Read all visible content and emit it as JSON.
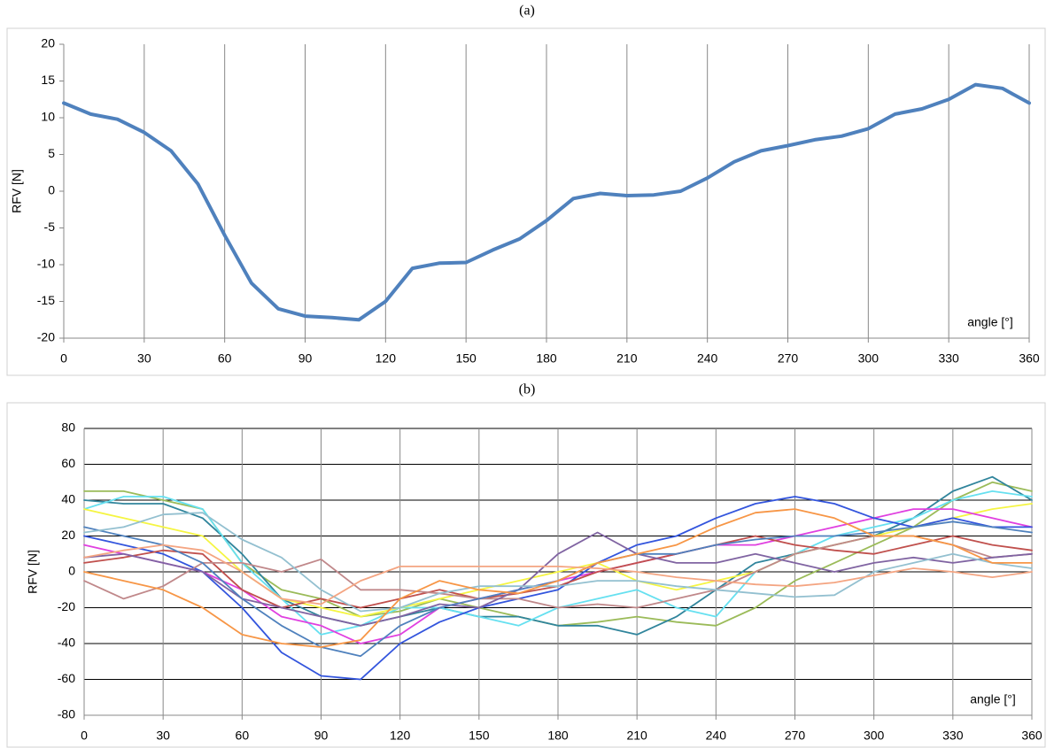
{
  "chart_data": [
    {
      "type": "line",
      "title": "(a)",
      "ylabel": "RFV [N]",
      "xlabel": "angle [°]",
      "x": [
        0,
        10,
        20,
        30,
        40,
        50,
        60,
        70,
        80,
        90,
        100,
        110,
        120,
        130,
        140,
        150,
        160,
        170,
        180,
        190,
        200,
        210,
        220,
        230,
        240,
        250,
        260,
        270,
        280,
        290,
        300,
        310,
        320,
        330,
        340,
        350,
        360
      ],
      "series": [
        {
          "color": "#4f81bd",
          "values": [
            12,
            10.5,
            9.8,
            8,
            5.5,
            1,
            -6,
            -12.5,
            -16,
            -17,
            -17.2,
            -17.5,
            -15,
            -10.5,
            -9.8,
            -9.7,
            -8,
            -6.5,
            -4,
            -1,
            -0.3,
            -0.6,
            -0.5,
            0,
            1.8,
            4,
            5.5,
            6.2,
            7,
            7.5,
            8.5,
            10.5,
            11.2,
            12.5,
            14.5,
            14,
            12
          ]
        }
      ],
      "xlim": [
        0,
        360
      ],
      "xticks": [
        0,
        30,
        60,
        90,
        120,
        150,
        180,
        210,
        240,
        270,
        300,
        330,
        360
      ],
      "ylim": [
        -20,
        20
      ],
      "yticks": [
        -20,
        -15,
        -10,
        -5,
        0,
        5,
        10,
        15,
        20
      ],
      "xgrid": true,
      "ygrid": false
    },
    {
      "type": "line",
      "title": "(b)",
      "ylabel": "RFV [N]",
      "xlabel": "angle [°]",
      "x": [
        0,
        15,
        30,
        45,
        60,
        75,
        90,
        105,
        120,
        135,
        150,
        165,
        180,
        195,
        210,
        225,
        240,
        255,
        270,
        285,
        300,
        315,
        330,
        345,
        360
      ],
      "series": [
        {
          "color": "#9bbb59",
          "values": [
            45,
            45,
            40,
            35,
            5,
            -10,
            -15,
            -25,
            -22,
            -15,
            -20,
            -25,
            -30,
            -28,
            -25,
            -28,
            -30,
            -20,
            -5,
            5,
            15,
            25,
            40,
            50,
            45
          ]
        },
        {
          "color": "#31859c",
          "values": [
            40,
            38,
            38,
            30,
            10,
            -15,
            -25,
            -30,
            -25,
            -20,
            -25,
            -25,
            -30,
            -30,
            -35,
            -25,
            -10,
            5,
            10,
            15,
            20,
            30,
            45,
            53,
            40
          ]
        },
        {
          "color": "#66e0f0",
          "values": [
            35,
            42,
            42,
            35,
            5,
            -15,
            -35,
            -30,
            -20,
            -20,
            -25,
            -30,
            -20,
            -15,
            -10,
            -20,
            -25,
            0,
            10,
            20,
            25,
            30,
            40,
            45,
            42
          ]
        },
        {
          "color": "#f5f542",
          "values": [
            35,
            30,
            25,
            20,
            0,
            -15,
            -20,
            -25,
            -20,
            -15,
            -10,
            -5,
            0,
            5,
            -5,
            -10,
            -5,
            0,
            10,
            15,
            20,
            25,
            30,
            35,
            38
          ]
        },
        {
          "color": "#e040e0",
          "values": [
            15,
            10,
            5,
            0,
            -10,
            -25,
            -30,
            -40,
            -35,
            -20,
            -15,
            -10,
            -5,
            0,
            5,
            10,
            15,
            15,
            20,
            25,
            30,
            35,
            35,
            30,
            25
          ]
        },
        {
          "color": "#3355dd",
          "values": [
            20,
            15,
            10,
            0,
            -20,
            -45,
            -58,
            -60,
            -40,
            -28,
            -20,
            -15,
            -10,
            5,
            15,
            20,
            30,
            38,
            42,
            38,
            30,
            25,
            30,
            25,
            25
          ]
        },
        {
          "color": "#c0504d",
          "values": [
            5,
            8,
            12,
            10,
            -10,
            -20,
            -15,
            -20,
            -15,
            -10,
            -15,
            -12,
            -8,
            0,
            5,
            10,
            15,
            20,
            15,
            12,
            10,
            15,
            20,
            15,
            12
          ]
        },
        {
          "color": "#c0888a",
          "values": [
            -5,
            -15,
            -8,
            5,
            5,
            0,
            7,
            -10,
            -10,
            -12,
            -15,
            -15,
            -20,
            -18,
            -20,
            -15,
            -10,
            0,
            10,
            15,
            20,
            20,
            15,
            8,
            10
          ]
        },
        {
          "color": "#8064a2",
          "values": [
            8,
            10,
            5,
            0,
            -15,
            -20,
            -25,
            -30,
            -25,
            -18,
            -20,
            -10,
            10,
            22,
            10,
            5,
            5,
            10,
            5,
            0,
            5,
            8,
            5,
            8,
            10
          ]
        },
        {
          "color": "#4f81bd",
          "values": [
            25,
            20,
            15,
            5,
            -15,
            -30,
            -42,
            -47,
            -30,
            -20,
            -15,
            -10,
            -5,
            5,
            10,
            10,
            15,
            18,
            20,
            20,
            22,
            25,
            28,
            25,
            22
          ]
        },
        {
          "color": "#93c0d0",
          "values": [
            22,
            25,
            32,
            33,
            18,
            8,
            -10,
            -22,
            -20,
            -12,
            -8,
            -8,
            -8,
            -5,
            -5,
            -8,
            -10,
            -12,
            -14,
            -13,
            0,
            5,
            10,
            5,
            2
          ]
        },
        {
          "color": "#f4a582",
          "values": [
            8,
            12,
            15,
            12,
            0,
            -15,
            -18,
            -5,
            3,
            3,
            3,
            3,
            3,
            2,
            0,
            -3,
            -5,
            -7,
            -8,
            -6,
            -2,
            2,
            0,
            -3,
            0
          ]
        },
        {
          "color": "#f79646",
          "values": [
            0,
            -5,
            -10,
            -20,
            -35,
            -40,
            -42,
            -38,
            -15,
            -5,
            -10,
            -12,
            -5,
            5,
            10,
            15,
            25,
            33,
            35,
            30,
            20,
            20,
            15,
            5,
            5
          ]
        }
      ],
      "xlim": [
        0,
        360
      ],
      "xticks": [
        0,
        30,
        60,
        90,
        120,
        150,
        180,
        210,
        240,
        270,
        300,
        330,
        360
      ],
      "ylim": [
        -80,
        80
      ],
      "yticks": [
        -80,
        -60,
        -40,
        -20,
        0,
        20,
        40,
        60,
        80
      ],
      "xgrid": true,
      "ygrid": true
    }
  ]
}
